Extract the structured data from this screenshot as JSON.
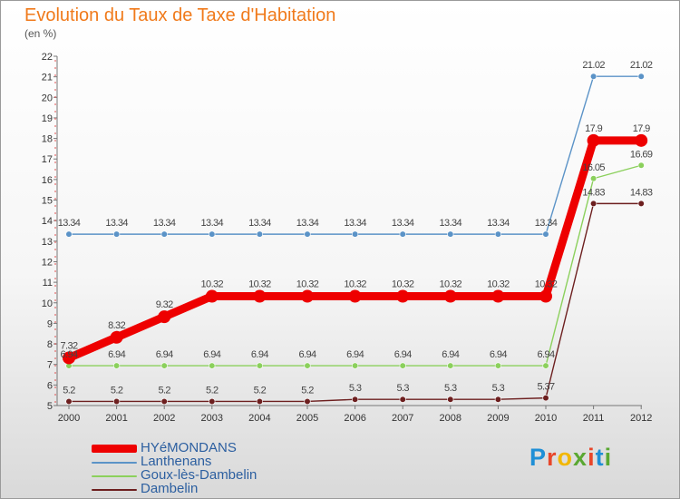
{
  "title": "Evolution du Taux de Taxe d'Habitation",
  "subtitle": "(en %)",
  "logo": {
    "letters": [
      "P",
      "r",
      "o",
      "x",
      "i",
      "t",
      "i"
    ],
    "colors": [
      "#1f8fd6",
      "#e8462a",
      "#f2b705",
      "#5aa832",
      "#e8462a",
      "#1f8fd6",
      "#5aa832"
    ]
  },
  "chart_data": {
    "type": "line",
    "title": "Evolution du Taux de Taxe d'Habitation",
    "ylabel": "(en %)",
    "xlabel": "",
    "categories": [
      "2000",
      "2001",
      "2002",
      "2003",
      "2004",
      "2005",
      "2006",
      "2007",
      "2008",
      "2009",
      "2010",
      "2011",
      "2012"
    ],
    "ylim": [
      5,
      22
    ],
    "yticks": [
      "5",
      "6",
      "7",
      "8",
      "9",
      "10",
      "11",
      "12",
      "13",
      "14",
      "15",
      "16",
      "17",
      "18",
      "19",
      "20",
      "21",
      "22"
    ],
    "grid": false,
    "legend_position": "bottom-left",
    "series": [
      {
        "name": "Lanthenans",
        "color": "#5b93c7",
        "values": [
          13.34,
          13.34,
          13.34,
          13.34,
          13.34,
          13.34,
          13.34,
          13.34,
          13.34,
          13.34,
          13.34,
          21.02,
          21.02
        ],
        "labels": [
          "13.34",
          "13.34",
          "13.34",
          "13.34",
          "13.34",
          "13.34",
          "13.34",
          "13.34",
          "13.34",
          "13.34",
          "13.34",
          "21.02",
          "21.02"
        ]
      },
      {
        "name": "Goux-lès-Dambelin",
        "color": "#8bd05c",
        "values": [
          6.94,
          6.94,
          6.94,
          6.94,
          6.94,
          6.94,
          6.94,
          6.94,
          6.94,
          6.94,
          6.94,
          16.05,
          16.69
        ],
        "labels": [
          "6.94",
          "6.94",
          "6.94",
          "6.94",
          "6.94",
          "6.94",
          "6.94",
          "6.94",
          "6.94",
          "6.94",
          "6.94",
          "16.05",
          "16.69"
        ]
      },
      {
        "name": "Dambelin",
        "color": "#6d1f1f",
        "values": [
          5.2,
          5.2,
          5.2,
          5.2,
          5.2,
          5.2,
          5.3,
          5.3,
          5.3,
          5.3,
          5.37,
          14.83,
          14.83
        ],
        "labels": [
          "5.2",
          "5.2",
          "5.2",
          "5.2",
          "5.2",
          "5.2",
          "5.3",
          "5.3",
          "5.3",
          "5.3",
          "5.37",
          "14.83",
          "14.83"
        ]
      },
      {
        "name": "HYéMONDANS",
        "color": "#ee0000",
        "values": [
          7.32,
          8.32,
          9.32,
          10.32,
          10.32,
          10.32,
          10.32,
          10.32,
          10.32,
          10.32,
          10.32,
          17.9,
          17.9
        ],
        "labels": [
          "7.32",
          "8.32",
          "9.32",
          "10.32",
          "10.32",
          "10.32",
          "10.32",
          "10.32",
          "10.32",
          "10.32",
          "10.32",
          "17.9",
          "17.9"
        ]
      }
    ],
    "legend": [
      "HYéMONDANS",
      "Lanthenans",
      "Goux-lès-Dambelin",
      "Dambelin"
    ]
  }
}
